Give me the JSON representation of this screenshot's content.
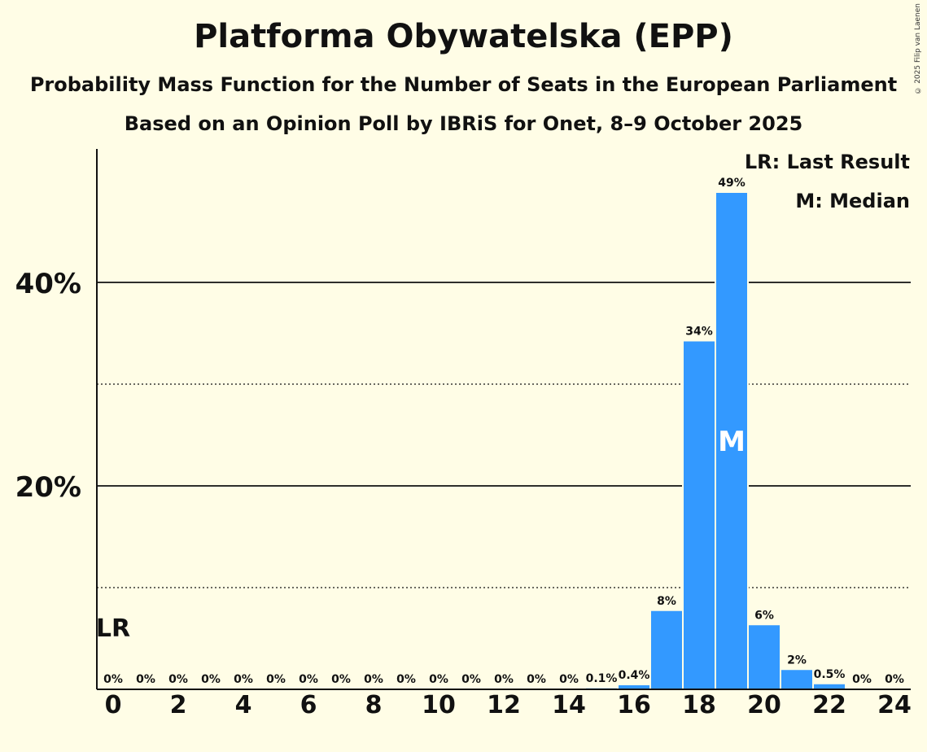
{
  "title": "Platforma Obywatelska (EPP)",
  "subtitle1": "Probability Mass Function for the Number of Seats in the European Parliament",
  "subtitle2": "Based on an Opinion Poll by IBRiS for Onet, 8–9 October 2025",
  "copyright": "© 2025 Filip van Laenen",
  "legend": {
    "last_result": "LR: Last Result",
    "median": "M: Median"
  },
  "colors": {
    "bar": "#3399FF",
    "background": "#FFFDE6",
    "text": "#111111"
  },
  "chart_data": {
    "type": "bar",
    "title": "Platforma Obywatelska (EPP)",
    "xlabel": "",
    "ylabel": "",
    "categories": [
      0,
      1,
      2,
      3,
      4,
      5,
      6,
      7,
      8,
      9,
      10,
      11,
      12,
      13,
      14,
      15,
      16,
      17,
      18,
      19,
      20,
      21,
      22,
      23,
      24
    ],
    "values": [
      0,
      0,
      0,
      0,
      0,
      0,
      0,
      0,
      0,
      0,
      0,
      0,
      0,
      0,
      0,
      0.1,
      0.4,
      7.7,
      34.2,
      48.8,
      6.3,
      1.9,
      0.5,
      0,
      0
    ],
    "value_labels": [
      "0%",
      "0%",
      "0%",
      "0%",
      "0%",
      "0%",
      "0%",
      "0%",
      "0%",
      "0%",
      "0%",
      "0%",
      "0%",
      "0%",
      "0%",
      "0.1%",
      "0.4%",
      "8%",
      "34%",
      "49%",
      "6%",
      "2%",
      "0.5%",
      "0%",
      "0%"
    ],
    "x_tick_labels": [
      "0",
      "2",
      "4",
      "6",
      "8",
      "10",
      "12",
      "14",
      "16",
      "18",
      "20",
      "22",
      "24"
    ],
    "x_tick_values": [
      0,
      2,
      4,
      6,
      8,
      10,
      12,
      14,
      16,
      18,
      20,
      22,
      24
    ],
    "y_ticks": [
      {
        "value": 20,
        "label": "20%",
        "style": "solid"
      },
      {
        "value": 40,
        "label": "40%",
        "style": "solid"
      }
    ],
    "y_minor_ticks": [
      10,
      30
    ],
    "ylim": [
      0,
      53
    ],
    "last_result": 0,
    "last_result_label": "LR",
    "median": 19,
    "median_label": "M"
  }
}
